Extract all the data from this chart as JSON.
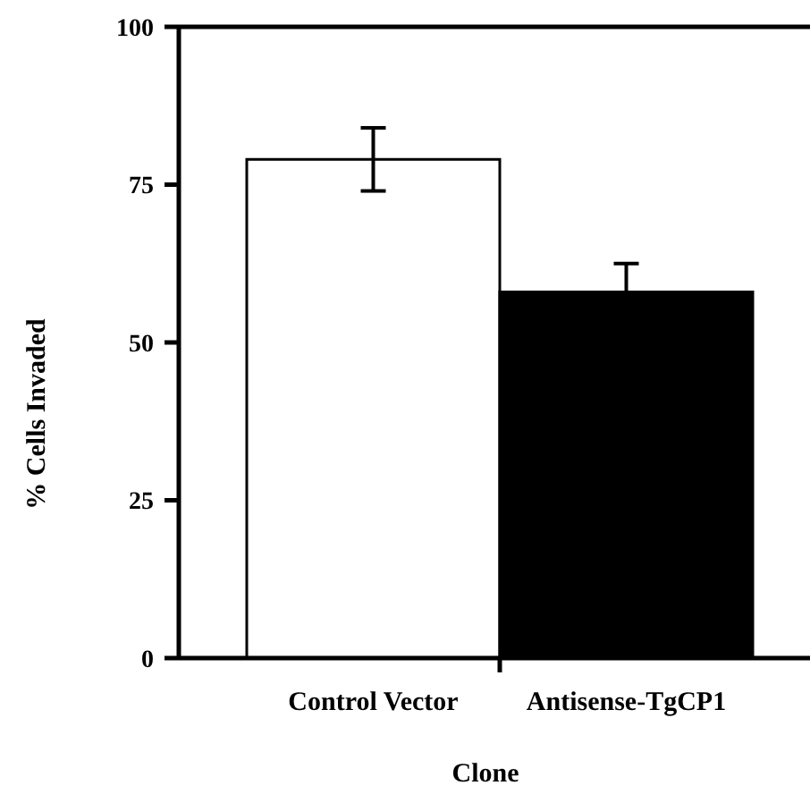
{
  "chart_data": {
    "type": "bar",
    "xlabel": "Clone",
    "ylabel": "% Cells Invaded",
    "categories": [
      "Control Vector",
      "Antisense-TgCP1"
    ],
    "values": [
      79,
      58
    ],
    "errors": [
      5,
      4.5
    ],
    "colors": [
      "#ffffff",
      "#000000"
    ],
    "ylim": [
      0,
      100
    ],
    "yticks": [
      0,
      25,
      50,
      75,
      100
    ],
    "grid": false
  }
}
